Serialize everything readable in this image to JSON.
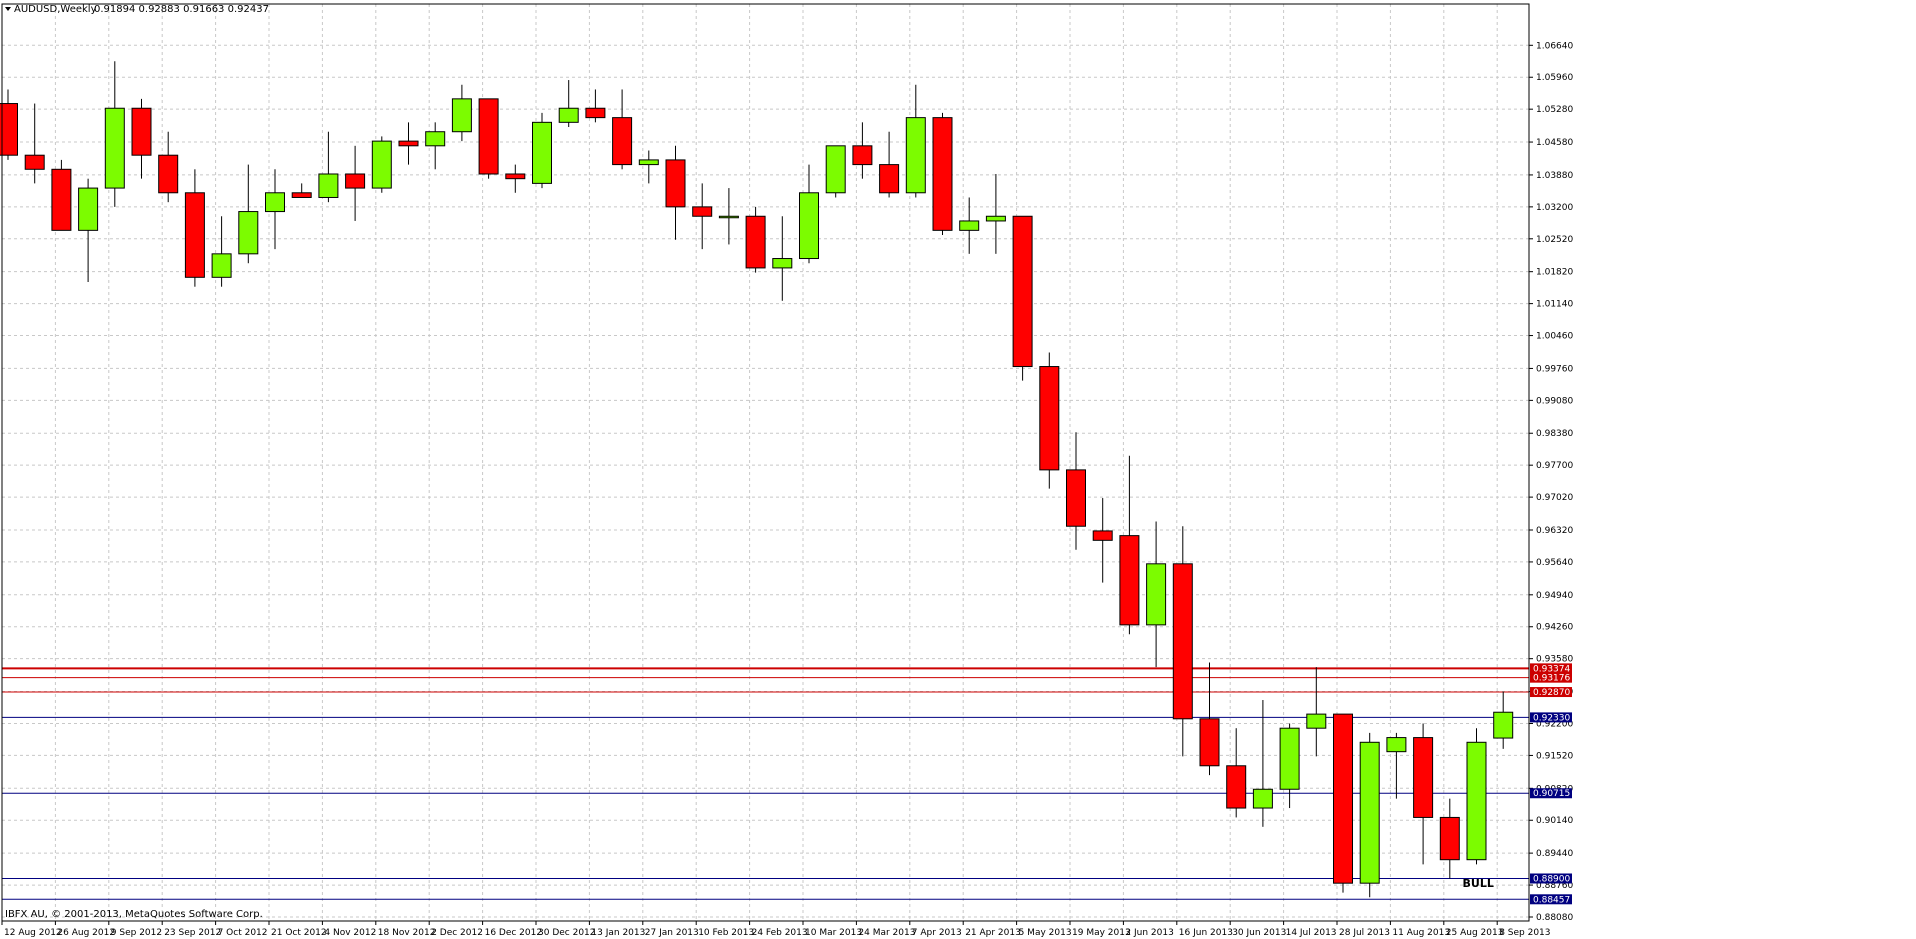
{
  "header": {
    "symbol": "AUDUSD,Weekly",
    "ohlc": "0.91894 0.92883 0.91663 0.92437"
  },
  "footer": {
    "copyright": "IBFX AU, © 2001-2013, MetaQuotes Software Corp."
  },
  "colors": {
    "bull_body": "#7cfc00",
    "bear_body": "#ff0000",
    "wick": "#000000",
    "grid": "#c8c8c8",
    "red_line": "#cc0000",
    "blue_line": "#000080"
  },
  "chart_data": {
    "type": "candlestick",
    "title": "",
    "ylim": [
      0.8808,
      1.072
    ],
    "grid": true,
    "y_ticks": [
      "1.06640",
      "1.05960",
      "1.05280",
      "1.04580",
      "1.03880",
      "1.03200",
      "1.02520",
      "1.01820",
      "1.01140",
      "1.00460",
      "0.99760",
      "0.99080",
      "0.98380",
      "0.97700",
      "0.97020",
      "0.96320",
      "0.95640",
      "0.94940",
      "0.94260",
      "0.93580",
      "0.92880",
      "0.92200",
      "0.91520",
      "0.90820",
      "0.90140",
      "0.89440",
      "0.88760",
      "0.88080"
    ],
    "x_labels": [
      "12 Aug 2012",
      "26 Aug 2012",
      "9 Sep 2012",
      "23 Sep 2012",
      "7 Oct 2012",
      "21 Oct 2012",
      "4 Nov 2012",
      "18 Nov 2012",
      "2 Dec 2012",
      "16 Dec 2012",
      "30 Dec 2012",
      "13 Jan 2013",
      "27 Jan 2013",
      "10 Feb 2013",
      "24 Feb 2013",
      "10 Mar 2013",
      "24 Mar 2013",
      "7 Apr 2013",
      "21 Apr 2013",
      "5 May 2013",
      "19 May 2013",
      "2 Jun 2013",
      "16 Jun 2013",
      "30 Jun 2013",
      "14 Jul 2013",
      "28 Jul 2013",
      "11 Aug 2013",
      "25 Aug 2013",
      "8 Sep 2013"
    ],
    "candles": [
      {
        "o": 1.054,
        "h": 1.057,
        "l": 1.042,
        "c": 1.043
      },
      {
        "o": 1.043,
        "h": 1.054,
        "l": 1.037,
        "c": 1.04
      },
      {
        "o": 1.04,
        "h": 1.042,
        "l": 1.027,
        "c": 1.027
      },
      {
        "o": 1.027,
        "h": 1.038,
        "l": 1.016,
        "c": 1.036
      },
      {
        "o": 1.036,
        "h": 1.063,
        "l": 1.032,
        "c": 1.053
      },
      {
        "o": 1.053,
        "h": 1.055,
        "l": 1.038,
        "c": 1.043
      },
      {
        "o": 1.043,
        "h": 1.048,
        "l": 1.033,
        "c": 1.035
      },
      {
        "o": 1.035,
        "h": 1.04,
        "l": 1.015,
        "c": 1.017
      },
      {
        "o": 1.017,
        "h": 1.03,
        "l": 1.015,
        "c": 1.022
      },
      {
        "o": 1.022,
        "h": 1.041,
        "l": 1.02,
        "c": 1.031
      },
      {
        "o": 1.031,
        "h": 1.04,
        "l": 1.023,
        "c": 1.035
      },
      {
        "o": 1.035,
        "h": 1.037,
        "l": 1.034,
        "c": 1.034
      },
      {
        "o": 1.034,
        "h": 1.048,
        "l": 1.033,
        "c": 1.039
      },
      {
        "o": 1.039,
        "h": 1.045,
        "l": 1.029,
        "c": 1.036
      },
      {
        "o": 1.036,
        "h": 1.047,
        "l": 1.035,
        "c": 1.046
      },
      {
        "o": 1.046,
        "h": 1.05,
        "l": 1.041,
        "c": 1.045
      },
      {
        "o": 1.045,
        "h": 1.05,
        "l": 1.04,
        "c": 1.048
      },
      {
        "o": 1.048,
        "h": 1.058,
        "l": 1.046,
        "c": 1.055
      },
      {
        "o": 1.055,
        "h": 1.055,
        "l": 1.038,
        "c": 1.039
      },
      {
        "o": 1.039,
        "h": 1.041,
        "l": 1.035,
        "c": 1.038
      },
      {
        "o": 1.037,
        "h": 1.052,
        "l": 1.036,
        "c": 1.05
      },
      {
        "o": 1.05,
        "h": 1.059,
        "l": 1.049,
        "c": 1.053
      },
      {
        "o": 1.053,
        "h": 1.057,
        "l": 1.05,
        "c": 1.051
      },
      {
        "o": 1.051,
        "h": 1.057,
        "l": 1.04,
        "c": 1.041
      },
      {
        "o": 1.041,
        "h": 1.044,
        "l": 1.037,
        "c": 1.042
      },
      {
        "o": 1.042,
        "h": 1.045,
        "l": 1.025,
        "c": 1.032
      },
      {
        "o": 1.032,
        "h": 1.037,
        "l": 1.023,
        "c": 1.03
      },
      {
        "o": 1.03,
        "h": 1.036,
        "l": 1.024,
        "c": 1.03
      },
      {
        "o": 1.03,
        "h": 1.032,
        "l": 1.018,
        "c": 1.019
      },
      {
        "o": 1.019,
        "h": 1.03,
        "l": 1.012,
        "c": 1.021
      },
      {
        "o": 1.021,
        "h": 1.041,
        "l": 1.02,
        "c": 1.035
      },
      {
        "o": 1.035,
        "h": 1.045,
        "l": 1.034,
        "c": 1.045
      },
      {
        "o": 1.045,
        "h": 1.05,
        "l": 1.038,
        "c": 1.041
      },
      {
        "o": 1.041,
        "h": 1.048,
        "l": 1.034,
        "c": 1.035
      },
      {
        "o": 1.035,
        "h": 1.058,
        "l": 1.034,
        "c": 1.051
      },
      {
        "o": 1.051,
        "h": 1.052,
        "l": 1.026,
        "c": 1.027
      },
      {
        "o": 1.027,
        "h": 1.034,
        "l": 1.022,
        "c": 1.029
      },
      {
        "o": 1.029,
        "h": 1.039,
        "l": 1.022,
        "c": 1.03
      },
      {
        "o": 1.03,
        "h": 1.03,
        "l": 0.995,
        "c": 0.998
      },
      {
        "o": 0.998,
        "h": 1.001,
        "l": 0.972,
        "c": 0.976
      },
      {
        "o": 0.976,
        "h": 0.984,
        "l": 0.959,
        "c": 0.964
      },
      {
        "o": 0.963,
        "h": 0.97,
        "l": 0.952,
        "c": 0.961
      },
      {
        "o": 0.962,
        "h": 0.979,
        "l": 0.941,
        "c": 0.943
      },
      {
        "o": 0.943,
        "h": 0.965,
        "l": 0.934,
        "c": 0.956
      },
      {
        "o": 0.956,
        "h": 0.964,
        "l": 0.915,
        "c": 0.923
      },
      {
        "o": 0.923,
        "h": 0.935,
        "l": 0.911,
        "c": 0.913
      },
      {
        "o": 0.913,
        "h": 0.921,
        "l": 0.902,
        "c": 0.904
      },
      {
        "o": 0.904,
        "h": 0.927,
        "l": 0.9,
        "c": 0.908
      },
      {
        "o": 0.908,
        "h": 0.922,
        "l": 0.904,
        "c": 0.921
      },
      {
        "o": 0.921,
        "h": 0.934,
        "l": 0.915,
        "c": 0.924
      },
      {
        "o": 0.924,
        "h": 0.924,
        "l": 0.886,
        "c": 0.888
      },
      {
        "o": 0.888,
        "h": 0.92,
        "l": 0.885,
        "c": 0.918
      },
      {
        "o": 0.916,
        "h": 0.92,
        "l": 0.906,
        "c": 0.919
      },
      {
        "o": 0.919,
        "h": 0.922,
        "l": 0.892,
        "c": 0.902
      },
      {
        "o": 0.902,
        "h": 0.906,
        "l": 0.889,
        "c": 0.893
      },
      {
        "o": 0.893,
        "h": 0.921,
        "l": 0.892,
        "c": 0.918
      },
      {
        "o": 0.9189,
        "h": 0.9288,
        "l": 0.9166,
        "c": 0.9244
      }
    ],
    "horizontal_lines": [
      {
        "price": 0.93374,
        "label": "0.93374",
        "color": "red",
        "kind": "thick"
      },
      {
        "price": 0.93176,
        "label": "0.93176",
        "color": "red",
        "kind": "thin"
      },
      {
        "price": 0.9287,
        "label": "0.92870",
        "color": "red",
        "kind": "thin"
      },
      {
        "price": 0.9233,
        "label": "0.92330",
        "color": "blue",
        "kind": "thin"
      },
      {
        "price": 0.90715,
        "label": "0.90715",
        "color": "blue",
        "kind": "thin"
      },
      {
        "price": 0.889,
        "label": "0.88900",
        "color": "blue",
        "kind": "thin"
      },
      {
        "price": 0.88457,
        "label": "0.88457",
        "color": "blue",
        "kind": "thin"
      }
    ],
    "annotations": [
      {
        "text": "BULL",
        "candle_index": 55,
        "price": 0.888
      }
    ]
  }
}
